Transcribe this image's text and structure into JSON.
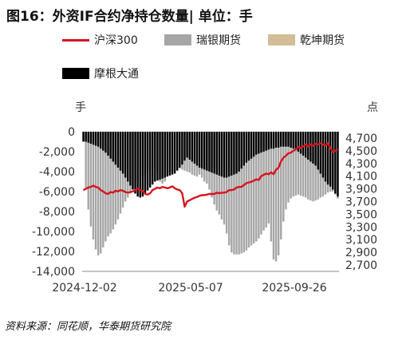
{
  "title": "图16：外资IF合约净持仓数量| 单位：手",
  "source": "资料来源：同花顺，华泰期货研究院",
  "chart_data": {
    "type": "bar",
    "ylabel_left": "手",
    "ylabel_right": "点",
    "ylim_left": [
      -14000,
      0
    ],
    "yticks_left": [
      "0",
      "-2,000",
      "-4,000",
      "-6,000",
      "-8,000",
      "-10,000",
      "-12,000",
      "-14,000"
    ],
    "ylim_right": [
      2600,
      4800
    ],
    "yticks_right": [
      "4,700",
      "4,500",
      "4,300",
      "4,100",
      "3,900",
      "3,700",
      "3,500",
      "3,300",
      "3,100",
      "2,900",
      "2,700"
    ],
    "xticks": [
      "2024-12-02",
      "2025-05-07",
      "2025-09-26"
    ],
    "colors": {
      "沪深300": "#d7141e",
      "瑞银期货": "#a6a6a6",
      "乾坤期货": "#d2bd96",
      "摩根大通": "#000000"
    },
    "series": [
      {
        "name": "沪深300",
        "kind": "line",
        "values": [
          3880,
          3900,
          3920,
          3930,
          3950,
          3930,
          3920,
          3880,
          3860,
          3830,
          3820,
          3850,
          3840,
          3870,
          3860,
          3880,
          3870,
          3850,
          3840,
          3850,
          3860,
          3880,
          3900,
          3880,
          3870,
          3820,
          3810,
          3830,
          3880,
          3900,
          3920,
          3910,
          3930,
          3920,
          3910,
          3920,
          3940,
          3910,
          3890,
          3880,
          3830,
          3620,
          3700,
          3720,
          3740,
          3760,
          3770,
          3790,
          3800,
          3800,
          3810,
          3820,
          3820,
          3820,
          3840,
          3830,
          3840,
          3840,
          3850,
          3880,
          3880,
          3890,
          3920,
          3930,
          3930,
          3960,
          3990,
          4000,
          4010,
          4030,
          4050,
          4040,
          4100,
          4120,
          4140,
          4130,
          4160,
          4130,
          4200,
          4230,
          4330,
          4390,
          4420,
          4460,
          4470,
          4500,
          4520,
          4560,
          4540,
          4570,
          4600,
          4570,
          4600,
          4580,
          4610,
          4600,
          4620,
          4600,
          4580,
          4620,
          4540,
          4480,
          4500,
          4520
        ]
      },
      {
        "name": "瑞银期货",
        "kind": "bar",
        "values": [
          -900,
          -5600,
          -7800,
          -9500,
          -10800,
          -11800,
          -12400,
          -12200,
          -11600,
          -11000,
          -10500,
          -10200,
          -9800,
          -9300,
          -8800,
          -8200,
          -7600,
          -7000,
          -6600,
          -6200,
          -5800,
          -5400,
          -4900,
          -4600,
          -4400,
          -4300,
          -4000,
          -3900,
          -3700,
          -3600,
          -4100,
          -5000,
          -5200,
          -5000,
          -4200,
          -4000,
          -3900,
          -3800,
          -3700,
          -3700,
          -3800,
          -3900,
          -4000,
          -4100,
          -4300,
          -4400,
          -4500,
          -4300,
          -4600,
          -5000,
          -5200,
          -5800,
          -6600,
          -7300,
          -7900,
          -8300,
          -8800,
          -9300,
          -10200,
          -11400,
          -12100,
          -12300,
          -12300,
          -12300,
          -12200,
          -12100,
          -11900,
          -11600,
          -11400,
          -11200,
          -11000,
          -10700,
          -10300,
          -9900,
          -9600,
          -9200,
          -11000,
          -12800,
          -13000,
          -12400,
          -10800,
          -9000,
          -7800,
          -7100,
          -6700,
          -6500,
          -6400,
          -6300,
          -6400,
          -6500,
          -6600,
          -6800,
          -6900,
          -7000,
          -6900,
          -6800,
          -6600,
          -6500,
          -6300,
          -6100,
          -6000,
          -6000,
          -6300,
          -6700
        ]
      },
      {
        "name": "乾坤期货",
        "kind": "bar",
        "values": [
          -200,
          -200,
          -200,
          -200,
          -200,
          -200,
          -200,
          -200,
          -200,
          -200,
          -200,
          -200,
          -200,
          -200,
          -200,
          -200,
          -200,
          -200,
          -200,
          -200,
          -200,
          -200,
          -200,
          -200,
          -200,
          -200,
          -200,
          -200,
          -200,
          -200,
          -200,
          -200,
          -200,
          -200,
          -200,
          -200,
          -200,
          -200,
          -200,
          -200,
          -200,
          -200,
          -200,
          -200,
          -200,
          -200,
          -200,
          -200,
          -200,
          -200,
          -200,
          -200,
          -200,
          -200,
          -200,
          -200,
          -200,
          -200,
          -200,
          -200,
          -200,
          -200,
          -200,
          -200,
          -200,
          -200,
          -200,
          -200,
          -200,
          -200,
          -200,
          -200,
          -200,
          -200,
          -200,
          -200,
          -200,
          -200,
          -200,
          -200,
          -200,
          -200,
          -200,
          -200,
          -200,
          -200,
          -200,
          -200,
          -200,
          -200,
          -200,
          -200,
          -200,
          -200,
          -200,
          -200,
          -200,
          -200,
          -200,
          -200,
          -200,
          -200,
          -200,
          -200
        ]
      },
      {
        "name": "摩根大通",
        "kind": "bar",
        "values": [
          -1000,
          -1000,
          -1100,
          -1200,
          -1300,
          -1400,
          -1500,
          -1700,
          -1900,
          -2100,
          -2400,
          -2700,
          -3000,
          -3300,
          -3600,
          -3900,
          -4200,
          -4600,
          -5000,
          -5400,
          -5800,
          -6200,
          -6500,
          -6600,
          -6500,
          -6200,
          -5900,
          -5600,
          -5300,
          -5000,
          -4900,
          -4800,
          -4700,
          -4600,
          -4500,
          -4400,
          -4300,
          -4200,
          -3900,
          -3600,
          -3300,
          -2900,
          -2600,
          -2800,
          -3000,
          -3200,
          -3400,
          -3600,
          -3700,
          -3800,
          -3900,
          -4000,
          -4100,
          -4200,
          -4300,
          -4400,
          -4500,
          -4600,
          -4600,
          -4500,
          -4400,
          -4300,
          -4200,
          -4000,
          -3700,
          -3400,
          -3100,
          -2900,
          -2700,
          -2500,
          -2300,
          -2200,
          -2100,
          -2000,
          -1900,
          -1800,
          -1700,
          -1700,
          -1600,
          -1600,
          -1500,
          -1500,
          -1500,
          -1500,
          -1600,
          -1700,
          -1800,
          -2000,
          -2200,
          -2400,
          -2600,
          -2800,
          -3000,
          -3200,
          -3400,
          -3800,
          -4200,
          -4600,
          -5000,
          -5300,
          -5500,
          -5800,
          -6200,
          -6500
        ]
      }
    ]
  }
}
